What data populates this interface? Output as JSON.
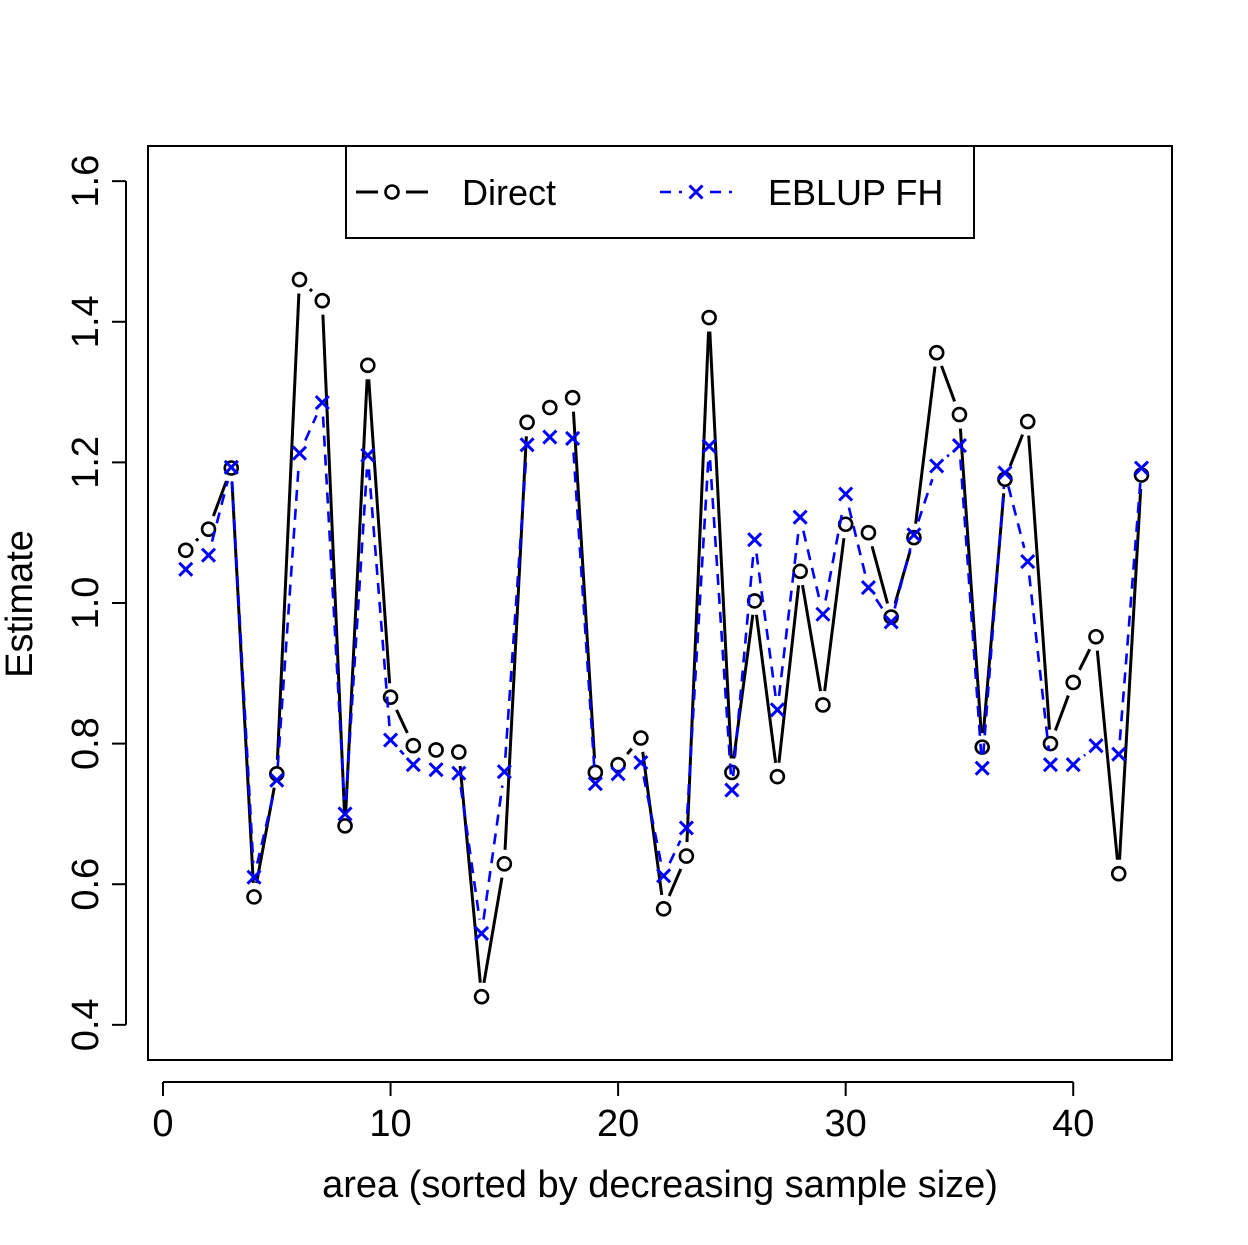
{
  "chart_data": {
    "type": "line",
    "title": "",
    "xlabel": "area (sorted by decreasing sample size)",
    "ylabel": "Estimate",
    "xlim": [
      0,
      45
    ],
    "ylim": [
      0.35,
      1.65
    ],
    "xticks": [
      0,
      10,
      20,
      30,
      40
    ],
    "yticks": [
      0.4,
      0.6,
      0.8,
      1.0,
      1.2,
      1.4,
      1.6
    ],
    "x_tick_labels": [
      "0",
      "10",
      "20",
      "30",
      "40"
    ],
    "y_tick_labels": [
      "0.4",
      "0.6",
      "0.8",
      "1.0",
      "1.2",
      "1.4",
      "1.6"
    ],
    "grid": false,
    "legend_position": "top-center",
    "x": [
      1,
      2,
      3,
      4,
      5,
      6,
      7,
      8,
      9,
      10,
      11,
      12,
      13,
      14,
      15,
      16,
      17,
      18,
      19,
      20,
      21,
      22,
      23,
      24,
      25,
      26,
      27,
      28,
      29,
      30,
      31,
      32,
      33,
      34,
      35,
      36,
      37,
      38,
      39,
      40,
      41,
      42,
      43
    ],
    "series": [
      {
        "name": "Direct",
        "color": "#000000",
        "line_style": "solid",
        "marker": "circle",
        "values": [
          1.075,
          1.105,
          1.192,
          0.582,
          0.757,
          1.46,
          1.43,
          0.683,
          1.338,
          0.866,
          0.797,
          0.791,
          0.788,
          0.44,
          0.629,
          1.257,
          1.278,
          1.292,
          0.759,
          0.77,
          0.808,
          0.565,
          0.64,
          1.406,
          0.759,
          1.003,
          0.753,
          1.045,
          0.855,
          1.112,
          1.1,
          0.98,
          1.093,
          1.356,
          1.268,
          0.795,
          1.176,
          1.258,
          0.8,
          0.887,
          0.952,
          0.615,
          1.182
        ]
      },
      {
        "name": "EBLUP FH",
        "color": "#0000ff",
        "line_style": "dashed",
        "marker": "x",
        "values": [
          1.048,
          1.068,
          1.193,
          0.61,
          0.748,
          1.213,
          1.285,
          0.7,
          1.21,
          0.805,
          0.77,
          0.763,
          0.758,
          0.53,
          0.76,
          1.225,
          1.236,
          1.234,
          0.743,
          0.757,
          0.773,
          0.612,
          0.68,
          1.223,
          0.734,
          1.09,
          0.848,
          1.122,
          0.984,
          1.155,
          1.022,
          0.973,
          1.097,
          1.195,
          1.224,
          0.765,
          1.185,
          1.059,
          0.77,
          0.77,
          0.797,
          0.785,
          1.192
        ]
      }
    ]
  }
}
